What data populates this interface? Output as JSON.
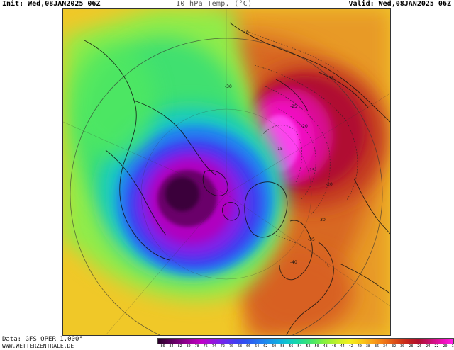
{
  "header": {
    "init": "Init: Wed,08JAN2025 06Z",
    "title": "10 hPa Temp. (°C)",
    "valid": "Valid: Wed,08JAN2025 06Z"
  },
  "footer": {
    "data_source": "Data: GFS OPER 1.000°",
    "website": "WWW.WETTERZENTRALE.DE"
  },
  "map": {
    "contour_labels": [
      "-40",
      "-35",
      "-30",
      "-25",
      "-20",
      "-15",
      "-15",
      "-20",
      "-30",
      "-35",
      "-40"
    ]
  },
  "colorbar": {
    "ticks": [
      "-86",
      "-84",
      "-82",
      "-80",
      "-78",
      "-76",
      "-74",
      "-72",
      "-70",
      "-68",
      "-66",
      "-64",
      "-62",
      "-60",
      "-58",
      "-56",
      "-54",
      "-52",
      "-50",
      "-48",
      "-46",
      "-44",
      "-42",
      "-40",
      "-38",
      "-36",
      "-34",
      "-32",
      "-30",
      "-28",
      "-26",
      "-24",
      "-22",
      "-20",
      "-18"
    ],
    "colors": [
      "#2a002a",
      "#4a004a",
      "#6a006a",
      "#8a008a",
      "#a800a8",
      "#c000c8",
      "#a010d8",
      "#8020e8",
      "#6030f0",
      "#4040f0",
      "#3050f0",
      "#2868f0",
      "#2080f0",
      "#1898e8",
      "#10b0e0",
      "#10c8c8",
      "#18d8a8",
      "#30e080",
      "#50e860",
      "#80f040",
      "#a8f030",
      "#d0f028",
      "#f0f020",
      "#f8d818",
      "#f8b818",
      "#f89818",
      "#f07818",
      "#e05818",
      "#d03818",
      "#c02020",
      "#b01030",
      "#c01060",
      "#d81090",
      "#f010c0",
      "#ff20e8"
    ]
  }
}
